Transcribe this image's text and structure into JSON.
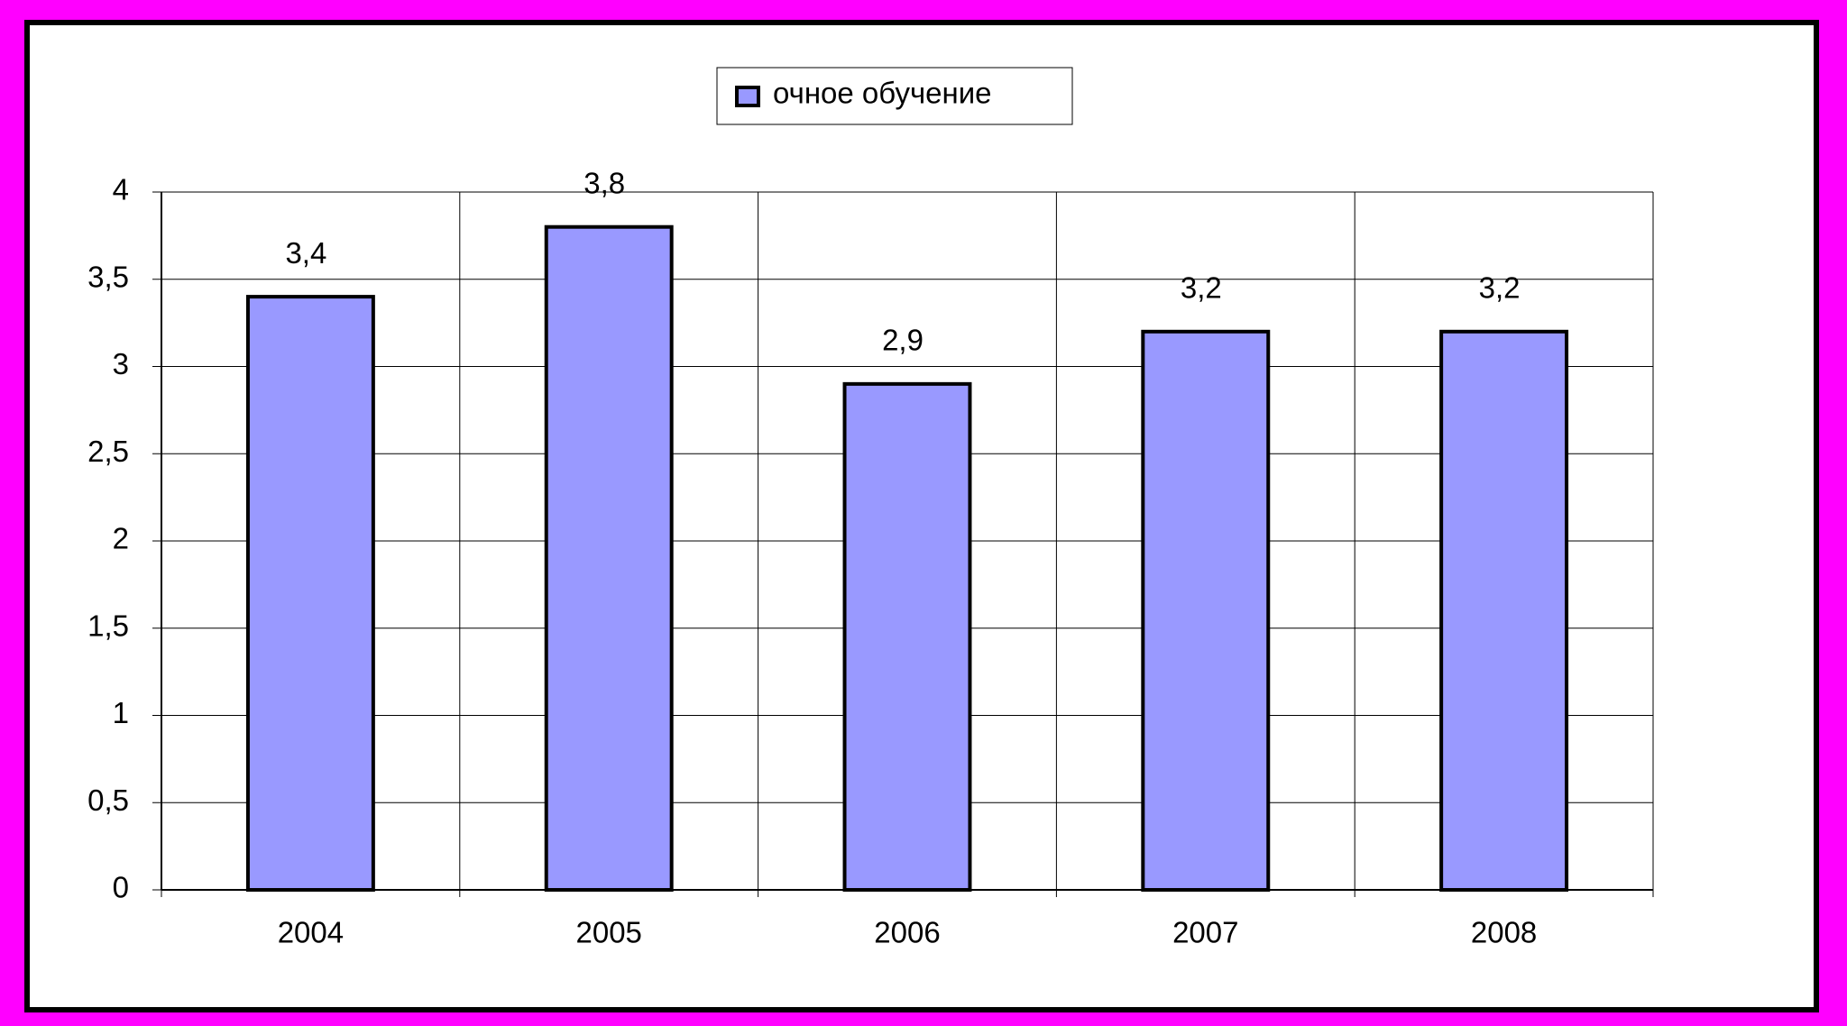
{
  "chart_data": {
    "type": "bar",
    "categories": [
      "2004",
      "2005",
      "2006",
      "2007",
      "2008"
    ],
    "series": [
      {
        "name": "очное обучение",
        "color": "#9999ff",
        "values": [
          3.4,
          3.8,
          2.9,
          3.2,
          3.2
        ],
        "value_labels": [
          "3,4",
          "3,8",
          "2,9",
          "3,2",
          "3,2"
        ]
      }
    ],
    "ylim": [
      0,
      4
    ],
    "yticks": [
      0,
      {
        "value": 0.5,
        "label": "0,5"
      },
      1,
      {
        "value": 1.5,
        "label": "1,5"
      },
      2,
      {
        "value": 2.5,
        "label": "2,5"
      },
      3,
      {
        "value": 3.5,
        "label": "3,5"
      },
      4
    ],
    "grid": true,
    "legend": "top"
  }
}
